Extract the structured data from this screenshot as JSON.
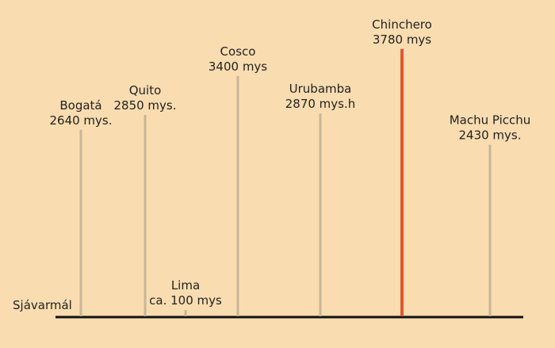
{
  "chart_data": {
    "type": "bar",
    "baseline_label": "Sjávarmál",
    "ylim": [
      0,
      3800
    ],
    "categories": [
      "Bogatá",
      "Quito",
      "Lima",
      "Cosco",
      "Urubamba",
      "Chinchero",
      "Machu Picchu"
    ],
    "values": [
      2640,
      2850,
      100,
      3400,
      2870,
      3780,
      2430
    ],
    "value_labels": [
      "2640 mys.",
      "2850 mys.",
      "ca. 100 mys",
      "3400 mys",
      "2870 mys.h",
      "3780 mys",
      "2430 mys."
    ],
    "highlight": "Chinchero",
    "colors": {
      "background": "#f9ddb0",
      "bar": "#c8b59a",
      "highlight": "#e4572e",
      "baseline": "#111111",
      "text": "#222222"
    }
  }
}
